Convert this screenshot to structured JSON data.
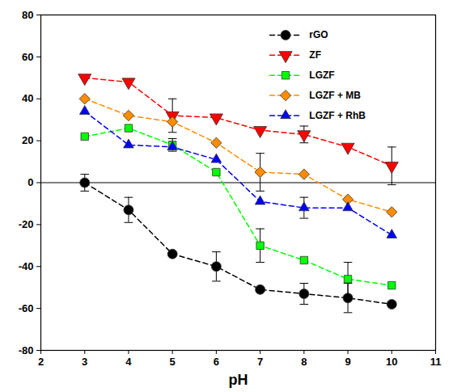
{
  "chart_data": {
    "type": "line",
    "x_label": "pH",
    "x": [
      3,
      4,
      5,
      6,
      7,
      8,
      9,
      10
    ],
    "xlim": [
      2,
      11
    ],
    "xticks": [
      2,
      3,
      4,
      5,
      6,
      7,
      8,
      9,
      10,
      11
    ],
    "ylim": [
      -80,
      80
    ],
    "yticks": [
      -80,
      -60,
      -40,
      -20,
      0,
      20,
      40,
      60,
      80
    ],
    "reference_lines": [
      0
    ],
    "legend": "top-right",
    "series": [
      {
        "name": "rGO",
        "color": "#000000",
        "marker": "circle",
        "line_style": "dashed",
        "values": [
          0,
          -13,
          -34,
          -40,
          -51,
          -53,
          -55,
          -58
        ],
        "errors": [
          4,
          6,
          null,
          7,
          null,
          5,
          7,
          null
        ]
      },
      {
        "name": "ZF",
        "color": "#ff0000",
        "marker": "triangle-down",
        "line_style": "dashed",
        "values": [
          50,
          48,
          32,
          31,
          25,
          23,
          17,
          8
        ],
        "errors": [
          null,
          null,
          8,
          null,
          null,
          4,
          null,
          9
        ]
      },
      {
        "name": "LGZF",
        "color": "#00ff00",
        "marker": "square",
        "line_style": "dashed",
        "values": [
          22,
          26,
          18,
          5,
          -30,
          -37,
          -46,
          -49
        ],
        "errors": [
          null,
          null,
          3,
          null,
          8,
          null,
          8,
          null
        ]
      },
      {
        "name": "LGZF + MB",
        "color": "#ff8c00",
        "marker": "diamond",
        "line_style": "dashed",
        "values": [
          40,
          32,
          29,
          19,
          5,
          4,
          -8,
          -14
        ],
        "errors": [
          null,
          null,
          null,
          null,
          9,
          null,
          null,
          null
        ]
      },
      {
        "name": "LGZF + RhB",
        "color": "#0000ff",
        "marker": "triangle",
        "line_style": "dashed",
        "values": [
          34,
          18,
          17,
          11,
          -9,
          -12,
          -12,
          -25
        ],
        "errors": [
          null,
          null,
          null,
          null,
          null,
          5,
          null,
          null
        ]
      }
    ]
  }
}
